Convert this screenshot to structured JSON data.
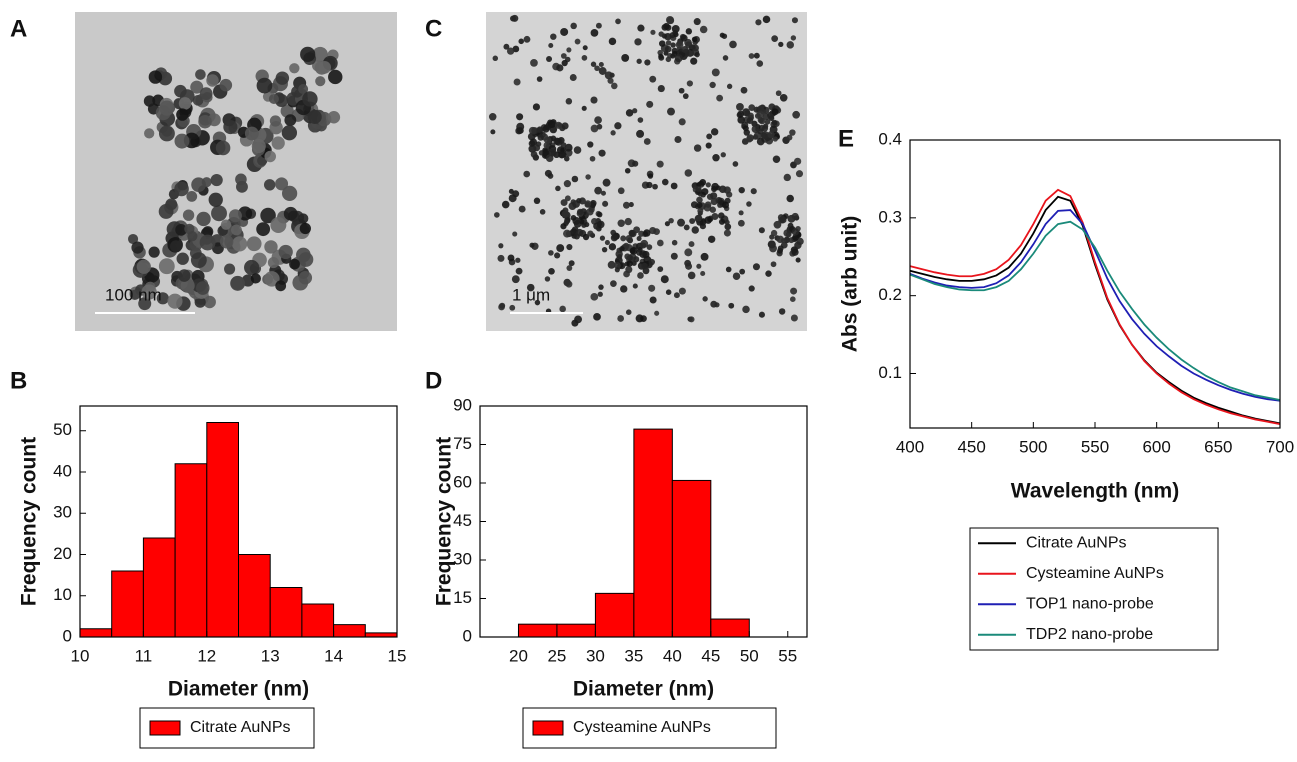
{
  "images": [
    {
      "panel": "A",
      "scale_bar": "100 nm"
    },
    {
      "panel": "C",
      "scale_bar": "1 μm"
    }
  ],
  "chart_data": [
    {
      "type": "histogram",
      "panel": "B",
      "x_label": "Diameter (nm)",
      "y_label": "Frequency count",
      "bins": [
        10,
        10.5,
        11,
        11.5,
        12,
        12.5,
        13,
        13.5,
        14,
        14.5,
        15
      ],
      "series": [
        {
          "name": "Citrate AuNPs",
          "color": "#ff0000",
          "values": [
            2,
            16,
            24,
            42,
            52,
            20,
            12,
            8,
            3,
            1
          ]
        }
      ],
      "xlim": [
        10,
        15
      ],
      "xticks": [
        10,
        11,
        12,
        13,
        14,
        15
      ],
      "ylim": [
        0,
        56
      ],
      "yticks": [
        0,
        10,
        20,
        30,
        40,
        50
      ]
    },
    {
      "type": "histogram",
      "panel": "D",
      "x_label": "Diameter (nm)",
      "y_label": "Frequency count",
      "bins": [
        20,
        25,
        30,
        35,
        40,
        45,
        50,
        55
      ],
      "series": [
        {
          "name": "Cysteamine AuNPs",
          "color": "#ff0000",
          "values": [
            5,
            5,
            17,
            81,
            61,
            7,
            0
          ]
        }
      ],
      "xlim": [
        15,
        57.5
      ],
      "xticks": [
        20,
        25,
        30,
        35,
        40,
        45,
        50,
        55
      ],
      "ylim": [
        0,
        90
      ],
      "yticks": [
        0,
        15,
        30,
        45,
        60,
        75,
        90
      ]
    },
    {
      "type": "line",
      "panel": "E",
      "x_label": "Wavelength (nm)",
      "y_label": "Abs (arb unit)",
      "x": [
        400,
        410,
        420,
        430,
        440,
        450,
        460,
        470,
        480,
        490,
        500,
        510,
        520,
        530,
        540,
        550,
        560,
        570,
        580,
        590,
        600,
        610,
        620,
        630,
        640,
        650,
        660,
        670,
        680,
        690,
        700
      ],
      "series": [
        {
          "name": "Citrate AuNPs",
          "color": "#000000",
          "values": [
            0.232,
            0.228,
            0.224,
            0.221,
            0.219,
            0.219,
            0.221,
            0.226,
            0.236,
            0.254,
            0.28,
            0.31,
            0.327,
            0.322,
            0.29,
            0.24,
            0.195,
            0.162,
            0.137,
            0.117,
            0.101,
            0.089,
            0.078,
            0.069,
            0.062,
            0.056,
            0.051,
            0.046,
            0.042,
            0.039,
            0.036
          ]
        },
        {
          "name": "Cysteamine AuNPs",
          "color": "#e8141c",
          "values": [
            0.238,
            0.234,
            0.23,
            0.227,
            0.225,
            0.225,
            0.228,
            0.234,
            0.246,
            0.265,
            0.292,
            0.322,
            0.336,
            0.328,
            0.294,
            0.243,
            0.197,
            0.163,
            0.137,
            0.116,
            0.1,
            0.087,
            0.076,
            0.067,
            0.06,
            0.054,
            0.049,
            0.045,
            0.041,
            0.038,
            0.035
          ]
        },
        {
          "name": "TOP1 nano-probe",
          "color": "#1f1fb4",
          "values": [
            0.228,
            0.222,
            0.217,
            0.213,
            0.211,
            0.21,
            0.211,
            0.216,
            0.226,
            0.243,
            0.266,
            0.292,
            0.309,
            0.31,
            0.292,
            0.258,
            0.222,
            0.193,
            0.17,
            0.151,
            0.135,
            0.122,
            0.11,
            0.1,
            0.092,
            0.085,
            0.079,
            0.074,
            0.07,
            0.067,
            0.065
          ]
        },
        {
          "name": "TDP2 nano-probe",
          "color": "#1a8a7a",
          "values": [
            0.227,
            0.221,
            0.215,
            0.211,
            0.208,
            0.207,
            0.207,
            0.211,
            0.219,
            0.234,
            0.254,
            0.277,
            0.292,
            0.295,
            0.285,
            0.262,
            0.232,
            0.205,
            0.183,
            0.163,
            0.146,
            0.131,
            0.118,
            0.107,
            0.097,
            0.089,
            0.082,
            0.077,
            0.072,
            0.069,
            0.066
          ]
        }
      ],
      "xlim": [
        400,
        700
      ],
      "xticks": [
        400,
        450,
        500,
        550,
        600,
        650,
        700
      ],
      "ylim": [
        0.03,
        0.4
      ],
      "yticks": [
        0.1,
        0.2,
        0.3,
        0.4
      ]
    }
  ]
}
